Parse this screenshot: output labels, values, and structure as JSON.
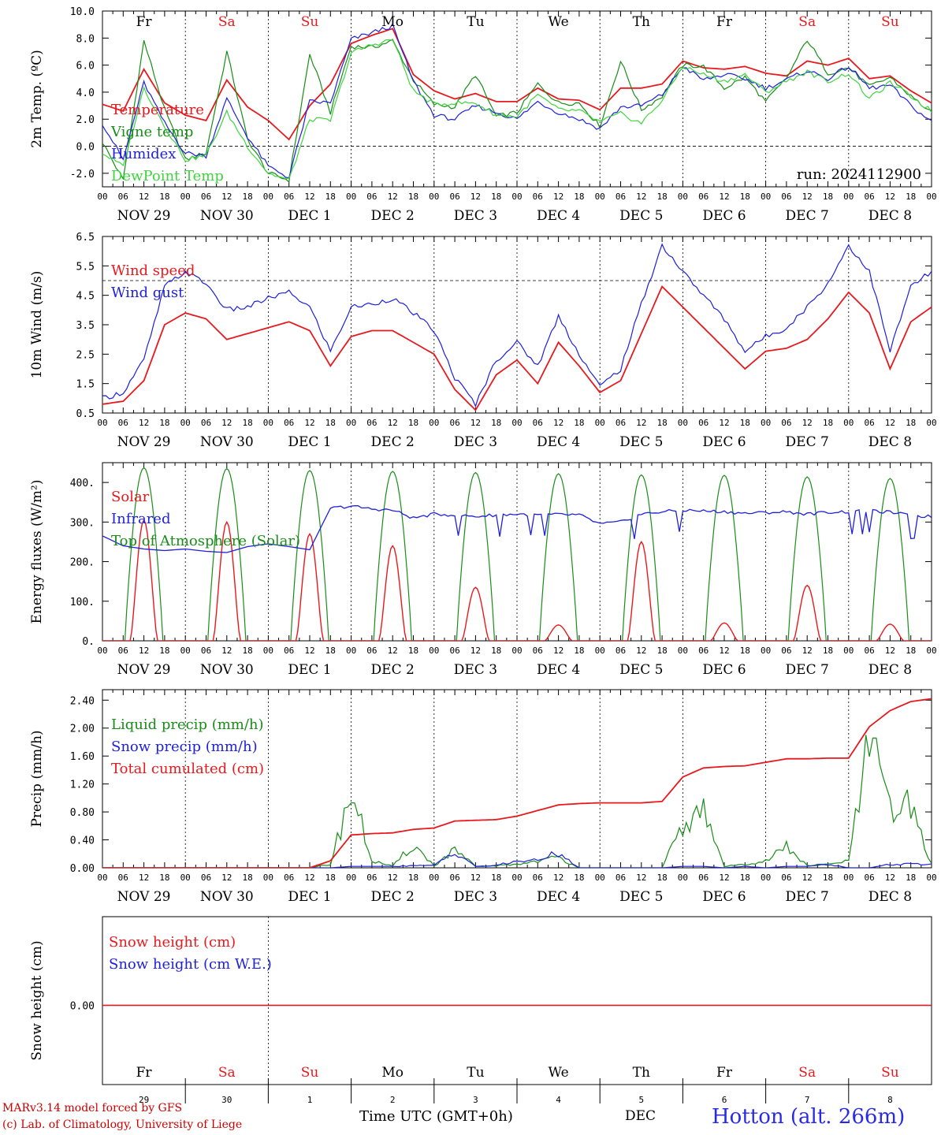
{
  "station": "Hotton (alt. 266m)",
  "run_label": "run: 2024112900",
  "footer": {
    "line1": "MARv3.14 model forced by GFS",
    "line2": "(c) Lab. of Climatology, University of Liege",
    "xaxis_title": "Time UTC (GMT+0h)",
    "month": "DEC"
  },
  "weekdays": [
    "Fr",
    "Sa",
    "Su",
    "Mo",
    "Tu",
    "We",
    "Th",
    "Fr",
    "Sa",
    "Su"
  ],
  "weekend_flags": [
    false,
    true,
    true,
    false,
    false,
    false,
    false,
    false,
    true,
    true
  ],
  "day_numbers": [
    "29",
    "30",
    "1",
    "2",
    "3",
    "4",
    "5",
    "6",
    "7",
    "8"
  ],
  "date_labels": [
    "NOV 29",
    "NOV 30",
    "DEC  1",
    "DEC  2",
    "DEC  3",
    "DEC  4",
    "DEC  5",
    "DEC  6",
    "DEC  7",
    "DEC  8"
  ],
  "hour_labels": [
    "00",
    "06",
    "12",
    "18"
  ],
  "hour_end": "00",
  "colors": {
    "red": "#e8191e",
    "green": "#1a8c1a",
    "blue": "#1f1fdc",
    "lightgreen": "#3fd43f"
  },
  "chart_data": [
    {
      "id": "temperature",
      "type": "line",
      "ylabel": "2m Temp. (ºC)",
      "ylim": [
        -3,
        10
      ],
      "yticks": [
        "-2.0",
        "0.0",
        "2.0",
        "4.0",
        "6.0",
        "8.0",
        "10.0"
      ],
      "ytick_values": [
        -2,
        0,
        2,
        4,
        6,
        8,
        10
      ],
      "reference_line": 0,
      "x_hours": [
        0,
        6,
        12,
        18,
        24,
        30,
        36,
        42,
        48,
        54,
        60,
        66,
        72,
        78,
        84,
        90,
        96,
        102,
        108,
        114,
        120,
        126,
        132,
        138,
        144,
        150,
        156,
        162,
        168,
        174,
        180,
        186,
        192,
        198,
        204,
        210,
        216,
        222,
        228,
        234,
        240
      ],
      "series": [
        {
          "name": "Temperature",
          "color": "#e8191e",
          "values": [
            3.1,
            2.6,
            5.7,
            3.2,
            2.3,
            1.9,
            4.9,
            2.9,
            1.9,
            0.5,
            3.0,
            4.6,
            7.6,
            8.2,
            8.7,
            5.3,
            4.1,
            3.5,
            3.9,
            3.3,
            3.3,
            4.3,
            3.5,
            3.4,
            2.7,
            4.3,
            4.3,
            4.6,
            6.3,
            5.8,
            5.7,
            5.9,
            5.4,
            5.2,
            6.3,
            6.0,
            6.5,
            5.0,
            5.2,
            4.1,
            3.2
          ]
        },
        {
          "name": "Vigne temp",
          "color": "#1a8c1a",
          "values": [
            0.3,
            -2.5,
            7.8,
            2.7,
            -1.0,
            -0.5,
            7.0,
            0.5,
            -2.0,
            -2.5,
            6.8,
            2.5,
            7.4,
            7.3,
            7.8,
            4.9,
            3.1,
            2.9,
            5.3,
            2.2,
            2.5,
            4.6,
            3.2,
            3.2,
            1.5,
            6.3,
            2.7,
            3.7,
            6.0,
            5.9,
            4.3,
            5.1,
            3.3,
            5.0,
            7.9,
            5.4,
            5.8,
            4.4,
            5.1,
            3.7,
            2.5
          ]
        },
        {
          "name": "Humidex",
          "color": "#1f1fdc",
          "values": [
            1.7,
            -1.0,
            4.7,
            1.7,
            -0.5,
            -0.7,
            3.5,
            0.7,
            -1.5,
            -2.3,
            3.3,
            3.2,
            7.9,
            8.4,
            8.9,
            4.8,
            2.3,
            2.0,
            3.0,
            2.5,
            2.0,
            3.3,
            2.5,
            2.0,
            1.3,
            2.9,
            3.0,
            3.8,
            5.9,
            4.9,
            5.3,
            5.0,
            4.3,
            4.9,
            5.6,
            5.0,
            5.9,
            4.3,
            4.5,
            3.0,
            1.8
          ]
        },
        {
          "name": "DewPoint Temp",
          "color": "#3fd43f",
          "values": [
            -0.5,
            -1.5,
            4.3,
            1.5,
            -1.0,
            -0.7,
            2.5,
            0.0,
            -2.0,
            -2.5,
            2.0,
            1.9,
            6.9,
            7.5,
            7.9,
            4.1,
            3.1,
            3.2,
            3.2,
            2.3,
            2.2,
            3.8,
            2.7,
            2.6,
            1.8,
            2.4,
            1.7,
            3.4,
            5.9,
            5.3,
            4.8,
            5.3,
            4.0,
            4.8,
            5.5,
            4.8,
            5.4,
            3.5,
            4.7,
            3.7,
            2.6
          ]
        }
      ]
    },
    {
      "id": "wind",
      "type": "line",
      "ylabel": "10m Wind (m/s)",
      "ylim": [
        0.5,
        6.5
      ],
      "yticks": [
        "0.5",
        "1.5",
        "2.5",
        "3.5",
        "4.5",
        "5.5",
        "6.5"
      ],
      "ytick_values": [
        0.5,
        1.5,
        2.5,
        3.5,
        4.5,
        5.5,
        6.5
      ],
      "reference_line": 5,
      "x_hours": [
        0,
        6,
        12,
        18,
        24,
        30,
        36,
        42,
        48,
        54,
        60,
        66,
        72,
        78,
        84,
        90,
        96,
        102,
        108,
        114,
        120,
        126,
        132,
        138,
        144,
        150,
        156,
        162,
        168,
        174,
        180,
        186,
        192,
        198,
        204,
        210,
        216,
        222,
        228,
        234,
        240
      ],
      "series": [
        {
          "name": "Wind speed",
          "color": "#e8191e",
          "values": [
            0.8,
            0.9,
            1.6,
            3.5,
            3.9,
            3.7,
            3.0,
            3.2,
            3.4,
            3.6,
            3.3,
            2.1,
            3.1,
            3.3,
            3.3,
            2.9,
            2.5,
            1.3,
            0.6,
            1.8,
            2.3,
            1.5,
            2.9,
            2.1,
            1.2,
            1.6,
            3.2,
            4.8,
            4.1,
            3.4,
            2.7,
            2.0,
            2.6,
            2.7,
            3.0,
            3.7,
            4.6,
            3.9,
            2.0,
            3.6,
            4.1
          ]
        },
        {
          "name": "Wind gust",
          "color": "#1f1fdc",
          "values": [
            1.0,
            1.2,
            2.3,
            4.8,
            5.3,
            4.9,
            4.0,
            4.1,
            4.4,
            4.6,
            4.1,
            2.6,
            4.1,
            4.2,
            4.4,
            3.9,
            3.3,
            1.7,
            0.8,
            2.3,
            2.9,
            2.1,
            3.8,
            2.5,
            1.4,
            2.0,
            4.2,
            6.2,
            5.3,
            4.5,
            3.7,
            2.6,
            3.1,
            3.4,
            4.1,
            4.9,
            6.2,
            5.3,
            2.6,
            4.8,
            5.3
          ]
        }
      ]
    },
    {
      "id": "energy",
      "type": "line",
      "ylabel": "Energy fluxes (W/m²)",
      "ylim": [
        0,
        450
      ],
      "yticks": [
        "0.",
        "100.",
        "200.",
        "300.",
        "400."
      ],
      "ytick_values": [
        0,
        100,
        200,
        300,
        400
      ],
      "diurnal_peaks": {
        "solar": [
          305,
          300,
          270,
          240,
          135,
          40,
          250,
          45,
          140,
          42
        ],
        "toa": [
          437,
          435,
          430,
          428,
          425,
          422,
          419,
          418,
          414,
          410
        ],
        "infrared_hourly_6": [
          265,
          240,
          232,
          228,
          232,
          226,
          223,
          238,
          245,
          238,
          230,
          335,
          340,
          333,
          330,
          310,
          320,
          318,
          314,
          318,
          320,
          318,
          319,
          318,
          295,
          300,
          320,
          326,
          330,
          328,
          326,
          322,
          324,
          326,
          320,
          325,
          326,
          328,
          325,
          316,
          314
        ]
      },
      "series": [
        {
          "name": "Solar",
          "color": "#e8191e"
        },
        {
          "name": "Infrared",
          "color": "#1f1fdc"
        },
        {
          "name": "Top of Atmosphere (Solar)",
          "color": "#1a8c1a"
        }
      ]
    },
    {
      "id": "precip",
      "type": "line",
      "ylabel": "Precip (mm/h)",
      "ylim": [
        0,
        2.55
      ],
      "yticks": [
        "0.00",
        "0.40",
        "0.80",
        "1.20",
        "1.60",
        "2.00",
        "2.40"
      ],
      "ytick_values": [
        0,
        0.4,
        0.8,
        1.2,
        1.6,
        2.0,
        2.4
      ],
      "x_hours": [
        0,
        6,
        12,
        18,
        24,
        30,
        36,
        42,
        48,
        54,
        60,
        66,
        72,
        78,
        84,
        90,
        96,
        102,
        108,
        114,
        120,
        126,
        132,
        138,
        144,
        150,
        156,
        162,
        168,
        174,
        180,
        186,
        192,
        198,
        204,
        210,
        216,
        222,
        228,
        234,
        240
      ],
      "series": [
        {
          "name": "Liquid precip (mm/h)",
          "color": "#1a8c1a",
          "values": [
            0,
            0,
            0,
            0,
            0,
            0,
            0,
            0,
            0,
            0,
            0,
            0.05,
            1.1,
            0.1,
            0.02,
            0.33,
            0.03,
            0.25,
            0.02,
            0.03,
            0.05,
            0.1,
            0.15,
            0,
            0,
            0,
            0,
            0,
            0.6,
            0.8,
            0.02,
            0.05,
            0.1,
            0.3,
            0.03,
            0.05,
            0.1,
            1.8,
            0.8,
            0.9,
            0.05
          ]
        },
        {
          "name": "Snow precip (mm/h)",
          "color": "#1f1fdc",
          "values": [
            0,
            0,
            0,
            0,
            0,
            0,
            0,
            0,
            0,
            0,
            0,
            0,
            0.02,
            0.02,
            0.02,
            0.03,
            0.03,
            0.25,
            0.02,
            0.03,
            0.1,
            0.1,
            0.22,
            0,
            0,
            0,
            0,
            0,
            0.02,
            0.02,
            0,
            0.02,
            0,
            0.02,
            0.02,
            0.05,
            0,
            0,
            0.05,
            0.05,
            0.05
          ]
        },
        {
          "name": "Total cumulated (cm)",
          "color": "#e8191e",
          "values": [
            0,
            0,
            0,
            0,
            0,
            0,
            0,
            0,
            0,
            0,
            0,
            0.1,
            0.47,
            0.49,
            0.5,
            0.55,
            0.57,
            0.67,
            0.68,
            0.69,
            0.74,
            0.82,
            0.9,
            0.92,
            0.93,
            0.93,
            0.93,
            0.95,
            1.3,
            1.43,
            1.45,
            1.46,
            1.51,
            1.56,
            1.56,
            1.57,
            1.57,
            2.02,
            2.25,
            2.38,
            2.42
          ]
        }
      ]
    },
    {
      "id": "snow",
      "type": "line",
      "ylabel": "Snow height (cm)",
      "yticks": [
        "0.00"
      ],
      "ytick_values": [
        0
      ],
      "series": [
        {
          "name": "Snow height (cm)",
          "color": "#e8191e",
          "values": [
            0,
            0
          ]
        },
        {
          "name": "Snow height (cm W.E.)",
          "color": "#1f1fdc",
          "values": [
            0,
            0
          ]
        }
      ]
    }
  ]
}
